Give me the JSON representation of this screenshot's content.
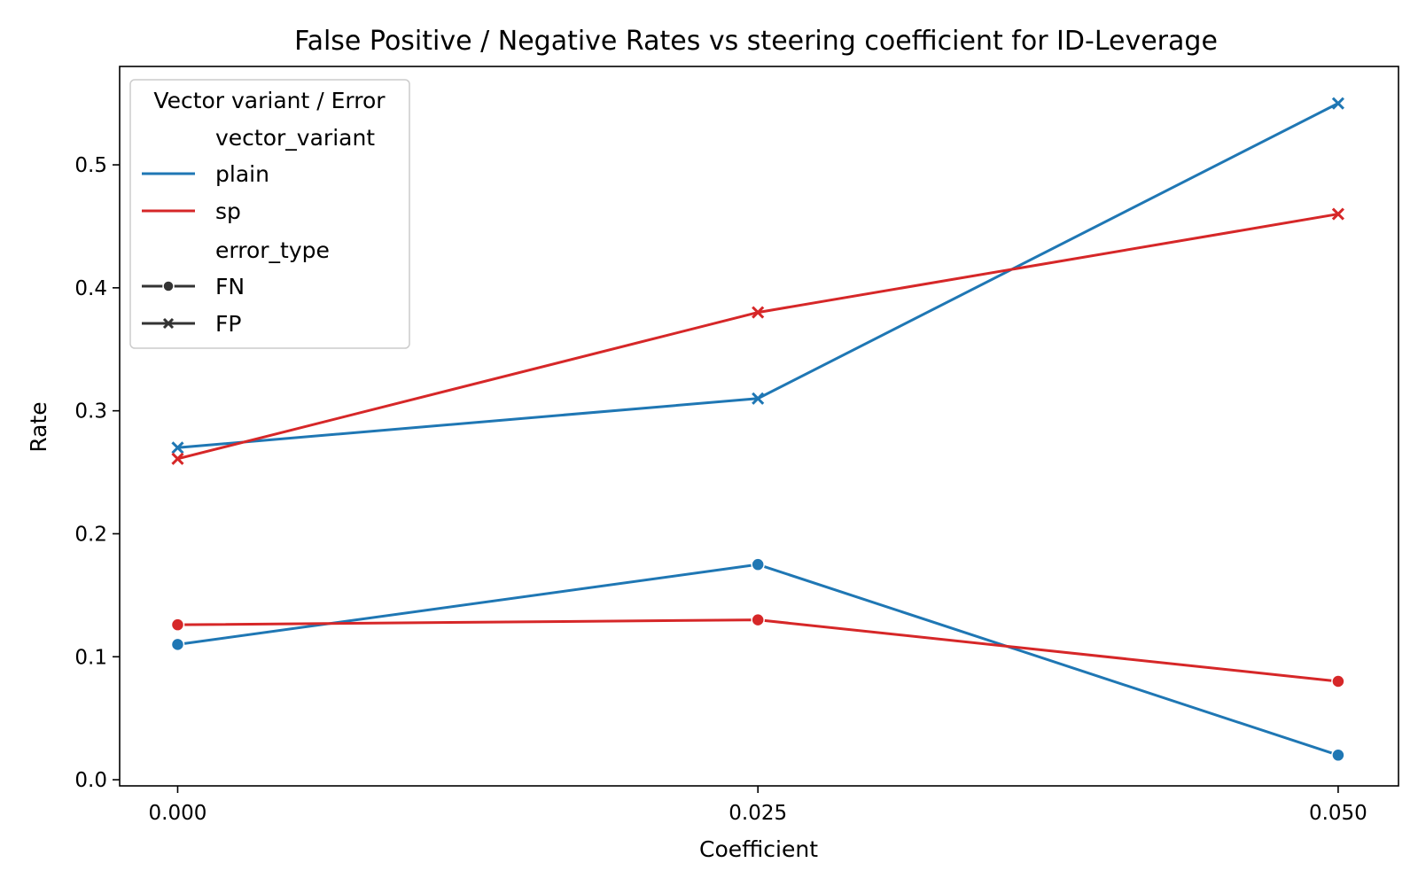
{
  "chart_data": {
    "type": "line",
    "title": "False Positive / Negative Rates vs steering coefficient for ID-Leverage",
    "xlabel": "Coefficient",
    "ylabel": "Rate",
    "x": [
      0.0,
      0.025,
      0.05
    ],
    "x_tick_labels": [
      "0.000",
      "0.025",
      "0.050"
    ],
    "xlim": [
      -0.0025,
      0.0526
    ],
    "ylim": [
      -0.005,
      0.58
    ],
    "y_ticks": [
      0.0,
      0.1,
      0.2,
      0.3,
      0.4,
      0.5
    ],
    "y_tick_labels": [
      "0.0",
      "0.1",
      "0.2",
      "0.3",
      "0.4",
      "0.5"
    ],
    "grid": false,
    "legend": {
      "placement": "top-left",
      "title": "Vector variant / Error",
      "hue_header": "vector_variant",
      "style_header": "error_type"
    },
    "series": [
      {
        "name": "plain",
        "error_type": "FN",
        "marker": "circle",
        "color": "#1f77b4",
        "values": [
          0.11,
          0.175,
          0.02
        ]
      },
      {
        "name": "plain",
        "error_type": "FP",
        "marker": "x",
        "color": "#1f77b4",
        "values": [
          0.27,
          0.31,
          0.55
        ]
      },
      {
        "name": "sp",
        "error_type": "FN",
        "marker": "circle",
        "color": "#d62728",
        "values": [
          0.126,
          0.13,
          0.08
        ]
      },
      {
        "name": "sp",
        "error_type": "FP",
        "marker": "x",
        "color": "#d62728",
        "values": [
          0.261,
          0.38,
          0.46
        ]
      }
    ],
    "legend_entries": [
      {
        "label": "plain",
        "kind": "hue",
        "color": "#1f77b4"
      },
      {
        "label": "sp",
        "kind": "hue",
        "color": "#d62728"
      },
      {
        "label": "FN",
        "kind": "style",
        "marker": "circle",
        "color": "#333333"
      },
      {
        "label": "FP",
        "kind": "style",
        "marker": "x",
        "color": "#333333"
      }
    ]
  }
}
